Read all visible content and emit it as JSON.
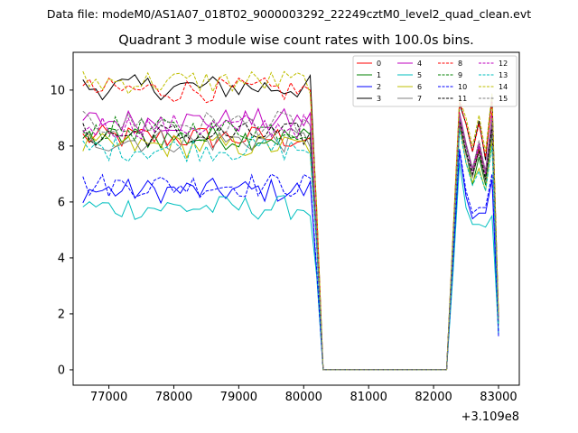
{
  "chart_data": {
    "type": "line",
    "suptitle": "Data file: modeM0/AS1A07_018T02_9000003292_22249cztM0_level2_quad_clean.evt",
    "title": "Quadrant 3 module wise count rates with 100.0s bins.",
    "xlabel": "",
    "ylabel": "",
    "x_offset_label": "+3.109e8",
    "xlim": [
      76450,
      83320
    ],
    "ylim": [
      -0.55,
      11.35
    ],
    "xticks": [
      77000,
      78000,
      79000,
      80000,
      81000,
      82000,
      83000
    ],
    "xtick_labels": [
      "77000",
      "78000",
      "79000",
      "80000",
      "81000",
      "82000",
      "83000"
    ],
    "yticks": [
      0,
      2,
      4,
      6,
      8,
      10
    ],
    "ytick_labels": [
      "0",
      "2",
      "4",
      "6",
      "8",
      "10"
    ],
    "grid": false,
    "legend_position": "top-right",
    "x": {
      "segment_a": [
        76600,
        76700,
        76800,
        76900,
        77000,
        77100,
        77200,
        77300,
        77400,
        77500,
        77600,
        77700,
        77800,
        77900,
        78000,
        78100,
        78200,
        78300,
        78400,
        78500,
        78600,
        78700,
        78800,
        78900,
        79000,
        79100,
        79200,
        79300,
        79400,
        79500,
        79600,
        79700,
        79800,
        79900,
        80000,
        80100
      ],
      "transition_a": [
        80200,
        80300
      ],
      "flat": [
        80400,
        80500,
        80600,
        80700,
        80800,
        80900,
        81000,
        81100,
        81200,
        81300,
        81400,
        81500,
        81600,
        81700,
        81800,
        81900,
        82000,
        82100,
        82200
      ],
      "segment_b": [
        82300,
        82400,
        82500,
        82600,
        82700,
        82800,
        82900,
        83000
      ]
    },
    "series": [
      {
        "name": "0",
        "color": "#ff0000",
        "dash": "solid",
        "base": 8.3,
        "peak_values": [
          4.3,
          8.9,
          7.7,
          6.9,
          7.9,
          6.7,
          9.2,
          1.7
        ]
      },
      {
        "name": "1",
        "color": "#008000",
        "dash": "solid",
        "base": 8.3,
        "peak_values": [
          4.4,
          8.6,
          7.8,
          6.6,
          7.6,
          6.6,
          8.5,
          1.6
        ]
      },
      {
        "name": "2",
        "color": "#0000ff",
        "dash": "solid",
        "base": 6.4,
        "peak_values": [
          3.8,
          7.8,
          6.2,
          5.4,
          5.6,
          5.6,
          6.8,
          1.2
        ]
      },
      {
        "name": "3",
        "color": "#000000",
        "dash": "solid",
        "base": 10.1,
        "peak_values": [
          4.8,
          9.5,
          8.8,
          7.8,
          8.9,
          7.5,
          9.8,
          1.9
        ]
      },
      {
        "name": "4",
        "color": "#bf00bf",
        "dash": "solid",
        "base": 8.9,
        "peak_values": [
          4.5,
          9.2,
          8.1,
          7.2,
          8.1,
          7.1,
          9.1,
          1.8
        ]
      },
      {
        "name": "5",
        "color": "#00bfbf",
        "dash": "solid",
        "base": 5.8,
        "peak_values": [
          3.5,
          7.4,
          5.8,
          5.2,
          5.2,
          5.1,
          5.5,
          1.3
        ]
      },
      {
        "name": "6",
        "color": "#bfbf00",
        "dash": "solid",
        "base": 8.0,
        "peak_values": [
          4.4,
          8.8,
          7.4,
          6.7,
          7.2,
          6.4,
          8.2,
          1.6
        ]
      },
      {
        "name": "7",
        "color": "#808080",
        "dash": "solid",
        "base": 8.2,
        "peak_values": [
          4.4,
          8.8,
          7.7,
          6.9,
          7.8,
          6.7,
          8.6,
          1.7
        ]
      },
      {
        "name": "8",
        "color": "#ff0000",
        "dash": "dashed",
        "base": 10.0,
        "peak_values": [
          4.8,
          9.6,
          8.8,
          7.8,
          8.8,
          7.6,
          9.6,
          1.9
        ]
      },
      {
        "name": "9",
        "color": "#008000",
        "dash": "dashed",
        "base": 8.6,
        "peak_values": [
          4.5,
          9.0,
          8.0,
          7.1,
          8.0,
          6.9,
          8.8,
          1.7
        ]
      },
      {
        "name": "10",
        "color": "#0000ff",
        "dash": "dashed",
        "base": 6.6,
        "peak_values": [
          3.9,
          7.9,
          6.4,
          5.6,
          5.8,
          5.8,
          7.0,
          1.3
        ]
      },
      {
        "name": "11",
        "color": "#000000",
        "dash": "dashed",
        "base": 8.4,
        "peak_values": [
          4.4,
          8.9,
          7.8,
          7.0,
          7.8,
          6.8,
          8.7,
          1.7
        ]
      },
      {
        "name": "12",
        "color": "#bf00bf",
        "dash": "dashed",
        "base": 8.7,
        "peak_values": [
          4.5,
          9.0,
          8.0,
          7.1,
          8.0,
          7.0,
          8.9,
          1.8
        ]
      },
      {
        "name": "13",
        "color": "#00bfbf",
        "dash": "dashed",
        "base": 7.9,
        "peak_values": [
          4.3,
          8.6,
          7.4,
          6.6,
          7.1,
          6.4,
          8.0,
          1.6
        ]
      },
      {
        "name": "14",
        "color": "#bfbf00",
        "dash": "dashed",
        "base": 10.3,
        "peak_values": [
          4.9,
          9.7,
          9.0,
          8.0,
          9.1,
          7.8,
          9.9,
          2.0
        ]
      },
      {
        "name": "15",
        "color": "#808080",
        "dash": "dashed",
        "base": 8.8,
        "peak_values": [
          4.5,
          9.1,
          8.1,
          7.2,
          8.2,
          7.1,
          9.0,
          1.8
        ]
      }
    ]
  }
}
